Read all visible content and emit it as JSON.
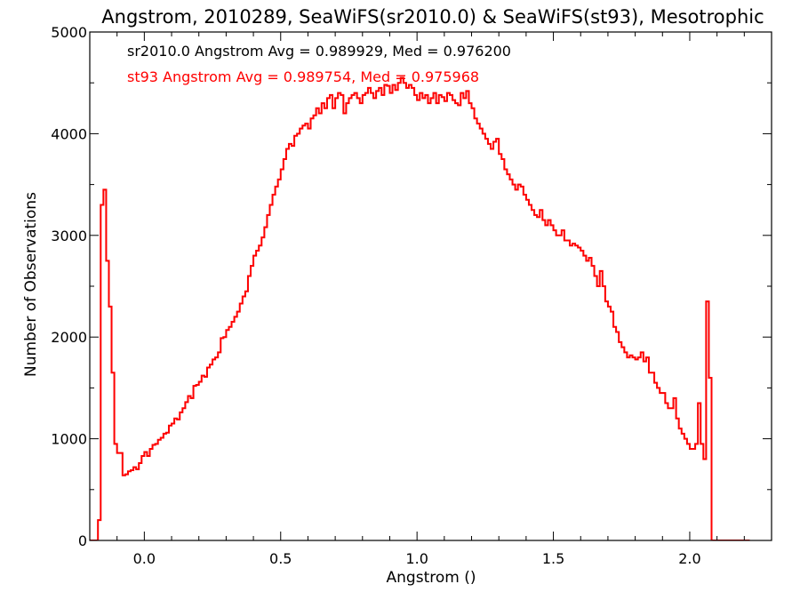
{
  "chart_data": {
    "type": "histogram-step",
    "title": "Angstrom, 2010289, SeaWiFS(sr2010.0) & SeaWiFS(st93), Mesotrophic",
    "xlabel": "Angstrom ()",
    "ylabel": "Number of Observations",
    "xlim": [
      -0.2,
      2.3
    ],
    "ylim": [
      0,
      5000
    ],
    "xticks": [
      0.0,
      0.5,
      1.0,
      1.5,
      2.0
    ],
    "xtick_labels": [
      "0.0",
      "0.5",
      "1.0",
      "1.5",
      "2.0"
    ],
    "yticks": [
      0,
      1000,
      2000,
      3000,
      4000,
      5000
    ],
    "ytick_labels": [
      "0",
      "1000",
      "2000",
      "3000",
      "4000",
      "5000"
    ],
    "annotations": [
      {
        "text": "sr2010.0 Angstrom Avg = 0.989929, Med = 0.976200",
        "color": "#000000"
      },
      {
        "text": "st93 Angstrom Avg = 0.989754, Med = 0.975968",
        "color": "#ff0000"
      }
    ],
    "bin_width": 0.01,
    "x_start": -0.2,
    "series": [
      {
        "name": "sr2010.0",
        "color": "#000000",
        "values": [
          0,
          0,
          0,
          200,
          3300,
          3450,
          2750,
          2300,
          1650,
          950,
          860,
          860,
          640,
          650,
          680,
          690,
          720,
          700,
          760,
          830,
          870,
          830,
          900,
          940,
          950,
          990,
          1010,
          1050,
          1060,
          1130,
          1150,
          1200,
          1190,
          1260,
          1300,
          1360,
          1420,
          1400,
          1520,
          1530,
          1560,
          1620,
          1610,
          1700,
          1730,
          1780,
          1800,
          1850,
          1990,
          2000,
          2070,
          2100,
          2150,
          2200,
          2250,
          2330,
          2400,
          2450,
          2600,
          2700,
          2800,
          2850,
          2900,
          2980,
          3080,
          3200,
          3300,
          3400,
          3480,
          3550,
          3650,
          3750,
          3850,
          3900,
          3880,
          3980,
          4000,
          4050,
          4080,
          4100,
          4050,
          4150,
          4180,
          4250,
          4200,
          4300,
          4250,
          4350,
          4380,
          4250,
          4350,
          4400,
          4380,
          4200,
          4300,
          4350,
          4380,
          4400,
          4350,
          4300,
          4380,
          4400,
          4450,
          4400,
          4350,
          4420,
          4450,
          4380,
          4480,
          4470,
          4400,
          4480,
          4430,
          4500,
          4550,
          4500,
          4450,
          4480,
          4450,
          4380,
          4330,
          4400,
          4350,
          4380,
          4300,
          4350,
          4400,
          4300,
          4380,
          4360,
          4320,
          4400,
          4380,
          4330,
          4300,
          4280,
          4400,
          4350,
          4420,
          4300,
          4250,
          4150,
          4100,
          4050,
          4000,
          3950,
          3900,
          3850,
          3920,
          3950,
          3800,
          3750,
          3650,
          3600,
          3550,
          3500,
          3450,
          3500,
          3480,
          3400,
          3350,
          3300,
          3250,
          3200,
          3180,
          3250,
          3150,
          3100,
          3150,
          3100,
          3050,
          3000,
          3000,
          3050,
          2950,
          2950,
          2900,
          2920,
          2900,
          2880,
          2850,
          2800,
          2750,
          2780,
          2700,
          2600,
          2500,
          2650,
          2500,
          2350,
          2300,
          2250,
          2100,
          2050,
          1950,
          1900,
          1850,
          1800,
          1820,
          1800,
          1780,
          1800,
          1850,
          1760,
          1800,
          1650,
          1650,
          1550,
          1500,
          1450,
          1450,
          1350,
          1300,
          1300,
          1400,
          1200,
          1100,
          1050,
          1000,
          950,
          900,
          900,
          950,
          1350,
          950,
          800,
          2350,
          1600,
          0,
          0,
          0,
          0,
          0,
          0,
          0,
          0,
          0,
          0,
          0,
          0,
          0,
          0
        ]
      },
      {
        "name": "st93",
        "color": "#ff0000",
        "values": [
          0,
          0,
          0,
          200,
          3300,
          3450,
          2750,
          2300,
          1650,
          950,
          860,
          860,
          640,
          650,
          680,
          690,
          720,
          700,
          760,
          830,
          870,
          830,
          900,
          940,
          950,
          990,
          1010,
          1050,
          1060,
          1130,
          1150,
          1200,
          1190,
          1260,
          1300,
          1360,
          1420,
          1400,
          1520,
          1530,
          1560,
          1620,
          1610,
          1700,
          1730,
          1780,
          1800,
          1850,
          1990,
          2000,
          2070,
          2100,
          2150,
          2200,
          2250,
          2330,
          2400,
          2450,
          2600,
          2700,
          2800,
          2850,
          2900,
          2980,
          3080,
          3200,
          3300,
          3400,
          3480,
          3550,
          3650,
          3750,
          3850,
          3900,
          3880,
          3980,
          4000,
          4050,
          4080,
          4100,
          4050,
          4150,
          4180,
          4250,
          4200,
          4300,
          4250,
          4350,
          4380,
          4250,
          4350,
          4400,
          4380,
          4200,
          4300,
          4350,
          4380,
          4400,
          4350,
          4300,
          4380,
          4400,
          4450,
          4400,
          4350,
          4420,
          4450,
          4380,
          4480,
          4470,
          4400,
          4480,
          4430,
          4500,
          4550,
          4500,
          4450,
          4480,
          4450,
          4380,
          4330,
          4400,
          4350,
          4380,
          4300,
          4350,
          4400,
          4300,
          4380,
          4360,
          4320,
          4400,
          4380,
          4330,
          4300,
          4280,
          4400,
          4350,
          4420,
          4300,
          4250,
          4150,
          4100,
          4050,
          4000,
          3950,
          3900,
          3850,
          3920,
          3950,
          3800,
          3750,
          3650,
          3600,
          3550,
          3500,
          3450,
          3500,
          3480,
          3400,
          3350,
          3300,
          3250,
          3200,
          3180,
          3250,
          3150,
          3100,
          3150,
          3100,
          3050,
          3000,
          3000,
          3050,
          2950,
          2950,
          2900,
          2920,
          2900,
          2880,
          2850,
          2800,
          2750,
          2780,
          2700,
          2600,
          2500,
          2650,
          2500,
          2350,
          2300,
          2250,
          2100,
          2050,
          1950,
          1900,
          1850,
          1800,
          1820,
          1800,
          1780,
          1800,
          1850,
          1760,
          1800,
          1650,
          1650,
          1550,
          1500,
          1450,
          1450,
          1350,
          1300,
          1300,
          1400,
          1200,
          1100,
          1050,
          1000,
          950,
          900,
          900,
          950,
          1350,
          950,
          800,
          2350,
          1600,
          0,
          0,
          0,
          0,
          0,
          0,
          0,
          0,
          0,
          0,
          0,
          0,
          0,
          0
        ]
      }
    ]
  }
}
